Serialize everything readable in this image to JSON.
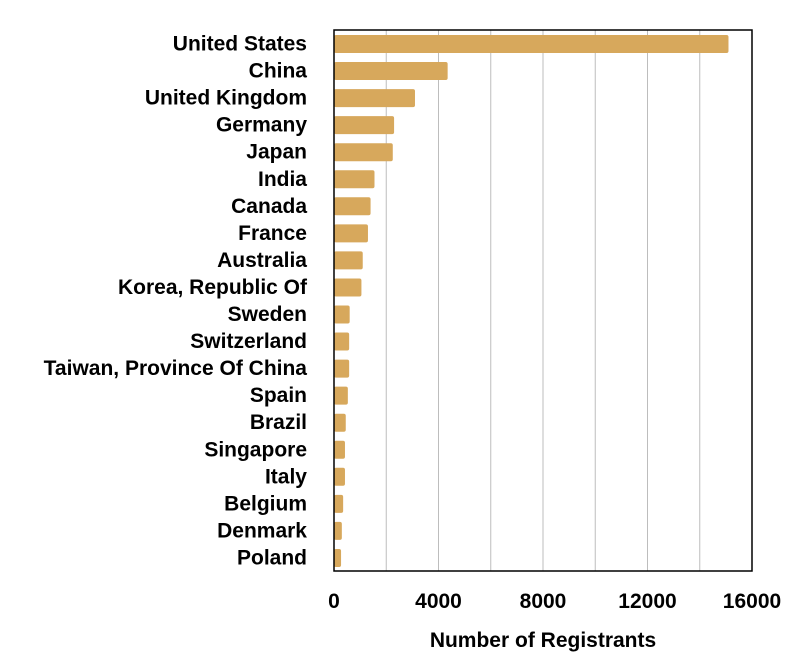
{
  "chart_data": {
    "type": "bar",
    "orientation": "horizontal",
    "title": "",
    "xlabel": "Number of Registrants",
    "ylabel": "",
    "categories": [
      "United States",
      "China",
      "United Kingdom",
      "Germany",
      "Japan",
      "India",
      "Canada",
      "France",
      "Australia",
      "Korea, Republic Of",
      "Sweden",
      "Switzerland",
      "Taiwan, Province Of China",
      "Spain",
      "Brazil",
      "Singapore",
      "Italy",
      "Belgium",
      "Denmark",
      "Poland"
    ],
    "values": [
      15100,
      4350,
      3100,
      2300,
      2250,
      1550,
      1400,
      1300,
      1100,
      1050,
      600,
      580,
      580,
      530,
      450,
      420,
      420,
      350,
      300,
      270
    ],
    "xlim": [
      0,
      16000
    ],
    "xticks": [
      0,
      4000,
      8000,
      12000,
      16000
    ],
    "xtick_labels": [
      "0",
      "4000",
      "8000",
      "12000",
      "16000"
    ],
    "grid": "vertical",
    "legend": "none",
    "bar_color": "#d7a85c"
  }
}
